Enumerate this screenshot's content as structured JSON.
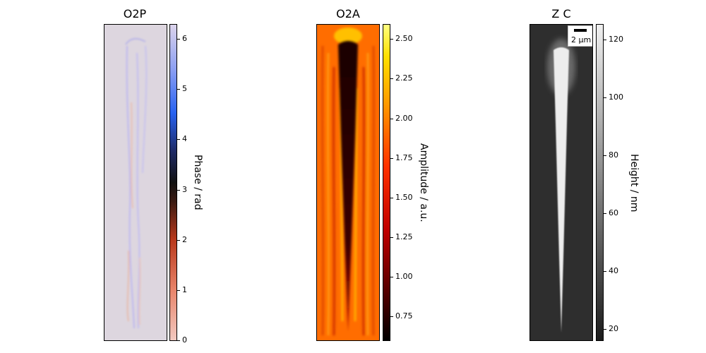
{
  "chart_data": [
    {
      "type": "heatmap",
      "title": "O2P",
      "colormap": "coolwarm-cyclic (light pink → blue → black → orange)",
      "colorbar": {
        "label": "Phase / rad",
        "range": [
          0,
          6.283
        ],
        "ticks": [
          "0",
          "1",
          "2",
          "3",
          "4",
          "5",
          "6"
        ]
      }
    },
    {
      "type": "heatmap",
      "title": "O2A",
      "colormap": "hot (black → red → orange → yellow)",
      "colorbar": {
        "label": "Amplitude / a.u.",
        "range": [
          0.6,
          2.59
        ],
        "ticks": [
          "0.75",
          "1.00",
          "1.25",
          "1.50",
          "1.75",
          "2.00",
          "2.25",
          "2.50"
        ]
      }
    },
    {
      "type": "heatmap",
      "title": "Z C",
      "colormap": "gray (dark → white)",
      "colorbar": {
        "label": "Height / nm",
        "range": [
          16,
          125
        ],
        "ticks": [
          "20",
          "40",
          "60",
          "80",
          "100",
          "120"
        ]
      },
      "scalebar": "2 µm"
    }
  ]
}
